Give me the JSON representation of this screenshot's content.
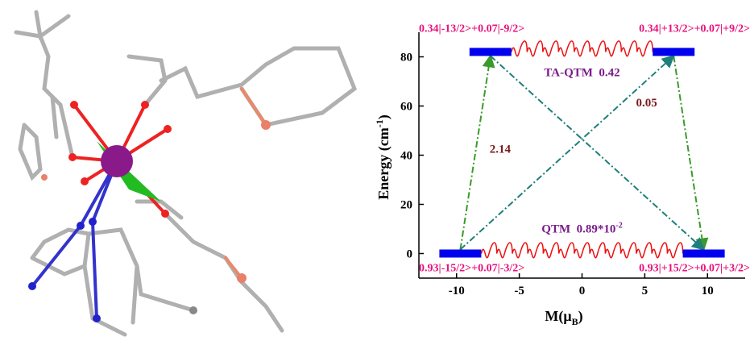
{
  "chart_data": {
    "type": "energy-level",
    "xlabel": {
      "text": "M(μ",
      "sub": "B",
      "end": ")"
    },
    "ylabel": {
      "text": "Energy (cm",
      "sup": "-1",
      "end": ")"
    },
    "xlim": [
      -13,
      13
    ],
    "xticks": [
      -10,
      -5,
      0,
      5,
      10
    ],
    "ylim": [
      -10,
      90
    ],
    "yticks": [
      0,
      20,
      40,
      60,
      80
    ],
    "levels": [
      {
        "label": "0.93|-15/2>+0.07|-3/2>",
        "m": -9.7,
        "energy": 0
      },
      {
        "label": "0.93|+15/2>+0.07|+3/2>",
        "m": 9.7,
        "energy": 0
      },
      {
        "label": "0.34|-13/2>+0.07|-9/2>",
        "m": -7.3,
        "energy": 82
      },
      {
        "label": "0.34|+13/2>+0.07|+9/2>",
        "m": 7.3,
        "energy": 82
      }
    ],
    "level_color": "#0000ee",
    "label_color": "#e8127c",
    "transitions": [
      {
        "from": 0,
        "to": 2,
        "value": 2.14,
        "color": "#3a9a2a"
      },
      {
        "from": 3,
        "to": 1,
        "color": "#3a9a2a"
      },
      {
        "from": 0,
        "to": 3,
        "value": 0.05,
        "color": "#1f7f7a"
      },
      {
        "from": 2,
        "to": 1,
        "color": "#1f7f7a"
      }
    ],
    "value_color": "#7a1a1a",
    "tunneling": [
      {
        "from": 2,
        "to": 3,
        "text": "TA-QTM  0.42"
      },
      {
        "from": 0,
        "to": 1,
        "text": "QTM  0.89*10",
        "sup": "-2"
      }
    ],
    "tunnel_color": "#ee1111",
    "tunnel_text_color": "#7a1a8a"
  }
}
